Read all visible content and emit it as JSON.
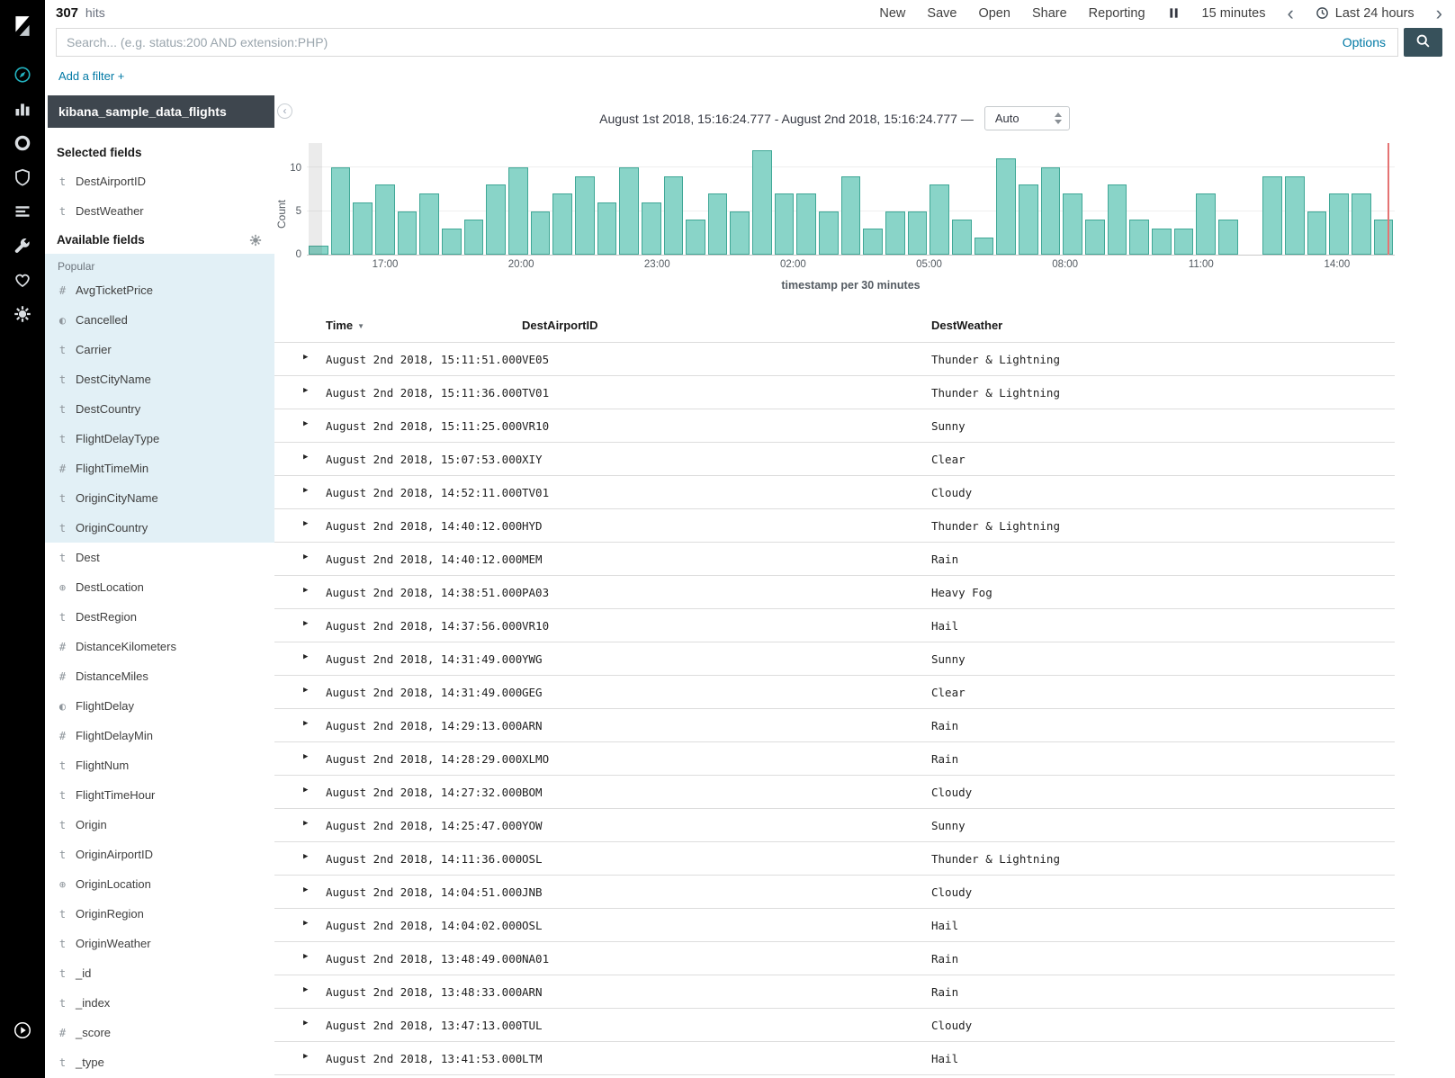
{
  "topbar": {
    "hits_count": "307",
    "hits_label": "hits",
    "nav": [
      "New",
      "Save",
      "Open",
      "Share",
      "Reporting"
    ],
    "refresh_interval": "15 minutes",
    "time_range": "Last 24 hours"
  },
  "search": {
    "placeholder": "Search... (e.g. status:200 AND extension:PHP)",
    "options_label": "Options"
  },
  "filter_bar": {
    "add_filter_label": "Add a filter +"
  },
  "sidebar": {
    "index_pattern": "kibana_sample_data_flights",
    "selected_fields_label": "Selected fields",
    "available_fields_label": "Available fields",
    "popular_label": "Popular",
    "selected_fields": [
      {
        "type": "string",
        "name": "DestAirportID"
      },
      {
        "type": "string",
        "name": "DestWeather"
      }
    ],
    "popular_fields": [
      {
        "type": "number",
        "name": "AvgTicketPrice"
      },
      {
        "type": "boolean",
        "name": "Cancelled"
      },
      {
        "type": "string",
        "name": "Carrier"
      },
      {
        "type": "string",
        "name": "DestCityName"
      },
      {
        "type": "string",
        "name": "DestCountry"
      },
      {
        "type": "string",
        "name": "FlightDelayType"
      },
      {
        "type": "number",
        "name": "FlightTimeMin"
      },
      {
        "type": "string",
        "name": "OriginCityName"
      },
      {
        "type": "string",
        "name": "OriginCountry"
      }
    ],
    "fields": [
      {
        "type": "string",
        "name": "Dest"
      },
      {
        "type": "geo_point",
        "name": "DestLocation"
      },
      {
        "type": "string",
        "name": "DestRegion"
      },
      {
        "type": "number",
        "name": "DistanceKilometers"
      },
      {
        "type": "number",
        "name": "DistanceMiles"
      },
      {
        "type": "boolean",
        "name": "FlightDelay"
      },
      {
        "type": "number",
        "name": "FlightDelayMin"
      },
      {
        "type": "string",
        "name": "FlightNum"
      },
      {
        "type": "string",
        "name": "FlightTimeHour"
      },
      {
        "type": "string",
        "name": "Origin"
      },
      {
        "type": "string",
        "name": "OriginAirportID"
      },
      {
        "type": "geo_point",
        "name": "OriginLocation"
      },
      {
        "type": "string",
        "name": "OriginRegion"
      },
      {
        "type": "string",
        "name": "OriginWeather"
      },
      {
        "type": "string",
        "name": "_id"
      },
      {
        "type": "string",
        "name": "_index"
      },
      {
        "type": "number",
        "name": "_score"
      },
      {
        "type": "string",
        "name": "_type"
      }
    ]
  },
  "chart": {
    "range_label": "August 1st 2018, 15:16:24.777 - August 2nd 2018, 15:16:24.777 —",
    "interval_value": "Auto"
  },
  "chart_data": {
    "type": "bar",
    "title": "",
    "xlabel": "timestamp per 30 minutes",
    "ylabel": "Count",
    "x_range": [
      "2018-08-01 15:16:24.777",
      "2018-08-02 15:16:24.777"
    ],
    "bucket_minutes": 30,
    "ylim": [
      0,
      12.9
    ],
    "yticks": [
      0,
      5,
      10
    ],
    "xticks": [
      "17:00",
      "20:00",
      "23:00",
      "02:00",
      "05:00",
      "08:00",
      "11:00",
      "14:00"
    ],
    "tick_positions": [
      7.2,
      19.7,
      32.2,
      44.7,
      57.2,
      69.7,
      82.2,
      94.7
    ],
    "values": [
      1,
      10,
      6,
      8,
      5,
      7,
      3,
      4,
      8,
      10,
      5,
      7,
      9,
      6,
      10,
      6,
      9,
      4,
      7,
      5,
      12,
      7,
      7,
      5,
      9,
      3,
      5,
      5,
      8,
      4,
      2,
      11,
      8,
      10,
      7,
      4,
      8,
      4,
      3,
      3,
      7,
      4,
      0,
      9,
      9,
      5,
      7,
      7,
      4
    ],
    "total_hits": 307
  },
  "table": {
    "columns": [
      "Time",
      "DestAirportID",
      "DestWeather"
    ],
    "rows": [
      {
        "time": "August 2nd 2018, 15:11:51.000",
        "dest_airport_id": "VE05",
        "dest_weather": "Thunder & Lightning"
      },
      {
        "time": "August 2nd 2018, 15:11:36.000",
        "dest_airport_id": "TV01",
        "dest_weather": "Thunder & Lightning"
      },
      {
        "time": "August 2nd 2018, 15:11:25.000",
        "dest_airport_id": "VR10",
        "dest_weather": "Sunny"
      },
      {
        "time": "August 2nd 2018, 15:07:53.000",
        "dest_airport_id": "XIY",
        "dest_weather": "Clear"
      },
      {
        "time": "August 2nd 2018, 14:52:11.000",
        "dest_airport_id": "TV01",
        "dest_weather": "Cloudy"
      },
      {
        "time": "August 2nd 2018, 14:40:12.000",
        "dest_airport_id": "HYD",
        "dest_weather": "Thunder & Lightning"
      },
      {
        "time": "August 2nd 2018, 14:40:12.000",
        "dest_airport_id": "MEM",
        "dest_weather": "Rain"
      },
      {
        "time": "August 2nd 2018, 14:38:51.000",
        "dest_airport_id": "PA03",
        "dest_weather": "Heavy Fog"
      },
      {
        "time": "August 2nd 2018, 14:37:56.000",
        "dest_airport_id": "VR10",
        "dest_weather": "Hail"
      },
      {
        "time": "August 2nd 2018, 14:31:49.000",
        "dest_airport_id": "YWG",
        "dest_weather": "Sunny"
      },
      {
        "time": "August 2nd 2018, 14:31:49.000",
        "dest_airport_id": "GEG",
        "dest_weather": "Clear"
      },
      {
        "time": "August 2nd 2018, 14:29:13.000",
        "dest_airport_id": "ARN",
        "dest_weather": "Rain"
      },
      {
        "time": "August 2nd 2018, 14:28:29.000",
        "dest_airport_id": "XLMO",
        "dest_weather": "Rain"
      },
      {
        "time": "August 2nd 2018, 14:27:32.000",
        "dest_airport_id": "BOM",
        "dest_weather": "Cloudy"
      },
      {
        "time": "August 2nd 2018, 14:25:47.000",
        "dest_airport_id": "YOW",
        "dest_weather": "Sunny"
      },
      {
        "time": "August 2nd 2018, 14:11:36.000",
        "dest_airport_id": "OSL",
        "dest_weather": "Thunder & Lightning"
      },
      {
        "time": "August 2nd 2018, 14:04:51.000",
        "dest_airport_id": "JNB",
        "dest_weather": "Cloudy"
      },
      {
        "time": "August 2nd 2018, 14:04:02.000",
        "dest_airport_id": "OSL",
        "dest_weather": "Hail"
      },
      {
        "time": "August 2nd 2018, 13:48:49.000",
        "dest_airport_id": "NA01",
        "dest_weather": "Rain"
      },
      {
        "time": "August 2nd 2018, 13:48:33.000",
        "dest_airport_id": "ARN",
        "dest_weather": "Rain"
      },
      {
        "time": "August 2nd 2018, 13:47:13.000",
        "dest_airport_id": "TUL",
        "dest_weather": "Cloudy"
      },
      {
        "time": "August 2nd 2018, 13:41:53.000",
        "dest_airport_id": "LTM",
        "dest_weather": "Hail"
      }
    ]
  }
}
